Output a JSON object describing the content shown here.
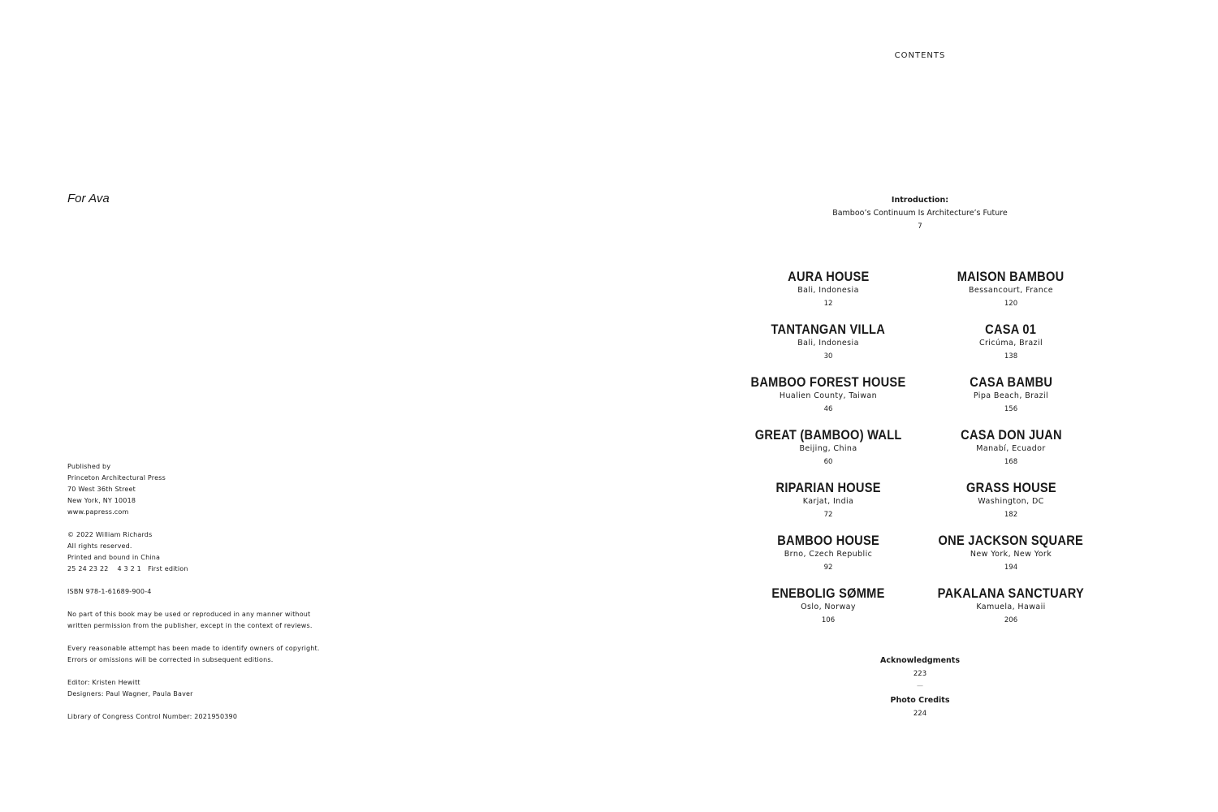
{
  "left_page": {
    "dedication": "For Ava",
    "colophon": [
      [
        "Published by",
        "Princeton Architectural Press",
        "70 West 36th Street",
        "New York, NY 10018",
        "www.papress.com"
      ],
      [
        "© 2022 William Richards",
        "All rights reserved.",
        "Printed and bound in China",
        "25 24 23 22    4 3 2 1   First edition"
      ],
      [
        "ISBN 978-1-61689-900-4"
      ],
      [
        "No part of this book may be used or reproduced in any manner without",
        "written permission from the publisher, except in the context of reviews."
      ],
      [
        "Every reasonable attempt has been made to identify owners of copyright.",
        "Errors or omissions will be corrected in subsequent editions."
      ],
      [
        "Editor: Kristen Hewitt",
        "Designers: Paul Wagner, Paula Baver"
      ],
      [
        "Library of Congress Control Number: 2021950390"
      ]
    ]
  },
  "right_page": {
    "heading": "CONTENTS",
    "intro": {
      "label": "Introduction:",
      "title": "Bamboo’s Continuum Is Architecture’s Future",
      "page": "7"
    },
    "left_column": [
      {
        "title": "AURA HOUSE",
        "location": "Bali, Indonesia",
        "page": "12"
      },
      {
        "title": "TANTANGAN VILLA",
        "location": "Bali, Indonesia",
        "page": "30"
      },
      {
        "title": "BAMBOO FOREST HOUSE",
        "location": "Hualien County, Taiwan",
        "page": "46"
      },
      {
        "title": "GREAT (BAMBOO) WALL",
        "location": "Beijing, China",
        "page": "60"
      },
      {
        "title": "RIPARIAN HOUSE",
        "location": "Karjat, India",
        "page": "72"
      },
      {
        "title": "BAMBOO HOUSE",
        "location": "Brno, Czech Republic",
        "page": "92"
      },
      {
        "title": "ENEBOLIG SØMME",
        "location": "Oslo, Norway",
        "page": "106"
      }
    ],
    "right_column": [
      {
        "title": "MAISON BAMBOU",
        "location": "Bessancourt, France",
        "page": "120"
      },
      {
        "title": "CASA 01",
        "location": "Cricúma, Brazil",
        "page": "138"
      },
      {
        "title": "CASA BAMBU",
        "location": "Pipa Beach, Brazil",
        "page": "156"
      },
      {
        "title": "CASA DON JUAN",
        "location": "Manabí, Ecuador",
        "page": "168"
      },
      {
        "title": "GRASS HOUSE",
        "location": "Washington, DC",
        "page": "182"
      },
      {
        "title": "ONE JACKSON SQUARE",
        "location": "New York, New York",
        "page": "194"
      },
      {
        "title": "PAKALANA SANCTUARY",
        "location": "Kamuela, Hawaii",
        "page": "206"
      }
    ],
    "back_matter": [
      {
        "title": "Acknowledgments",
        "page": "223"
      },
      {
        "separator": "—"
      },
      {
        "title": "Photo Credits",
        "page": "224"
      }
    ]
  }
}
